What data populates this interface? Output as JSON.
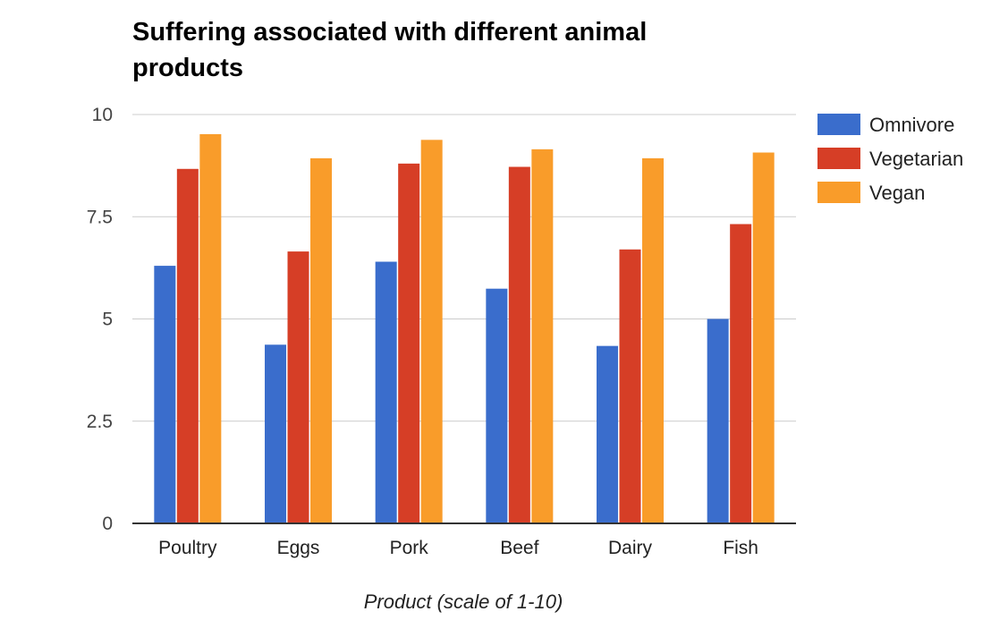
{
  "chart_data": {
    "type": "bar",
    "title": "Suffering associated with different animal products",
    "xlabel": "Product (scale of 1-10)",
    "ylabel": "",
    "ylim": [
      0,
      10
    ],
    "yticks": [
      {
        "value": 0,
        "label": "0"
      },
      {
        "value": 2.5,
        "label": "2.5"
      },
      {
        "value": 5,
        "label": "5"
      },
      {
        "value": 7.5,
        "label": "7.5"
      },
      {
        "value": 10,
        "label": "10"
      }
    ],
    "grid": true,
    "legend_position": "right",
    "categories": [
      "Poultry",
      "Eggs",
      "Pork",
      "Beef",
      "Dairy",
      "Fish"
    ],
    "series": [
      {
        "name": "Omnivore",
        "color": "#3a6dcc",
        "values": [
          6.3,
          4.37,
          6.4,
          5.74,
          4.34,
          5.0
        ]
      },
      {
        "name": "Vegetarian",
        "color": "#d63e26",
        "values": [
          8.67,
          6.65,
          8.8,
          8.72,
          6.7,
          7.32
        ]
      },
      {
        "name": "Vegan",
        "color": "#f99c2a",
        "values": [
          9.52,
          8.93,
          9.38,
          9.15,
          8.93,
          9.07
        ]
      }
    ]
  }
}
